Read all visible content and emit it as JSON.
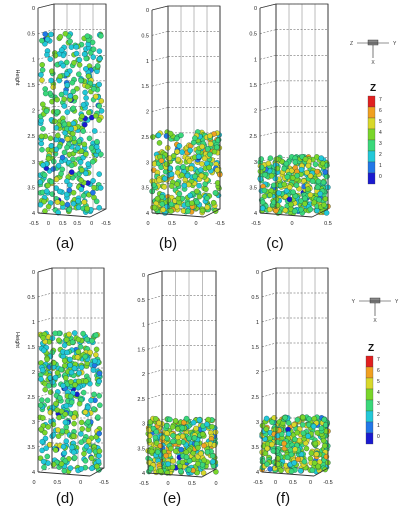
{
  "panels": [
    {
      "id": "a",
      "label": "(a)",
      "ylabel": "Height",
      "yticks": [
        "0",
        "0.5",
        "1",
        "1.5",
        "2",
        "2.5",
        "3",
        "3.5",
        "4"
      ],
      "xticks": [
        "-0.5",
        "0",
        "0.5",
        "0.5",
        "0",
        "-0.5"
      ],
      "fill_top": 0.5,
      "fill_bottom": 4.0,
      "fill_shape": "column"
    },
    {
      "id": "b",
      "label": "(b)",
      "ylabel": "",
      "yticks": [
        "0",
        "0.5",
        "1",
        "1.5",
        "2",
        "2.5",
        "3",
        "3.5",
        "4"
      ],
      "xticks": [
        "0",
        "0.5",
        "0",
        "-0.5"
      ],
      "fill_top": 2.4,
      "fill_bottom": 4.0,
      "fill_shape": "bed"
    },
    {
      "id": "c",
      "label": "(c)",
      "ylabel": "",
      "yticks": [
        "0",
        "0.5",
        "1",
        "1.5",
        "2",
        "2.5",
        "3",
        "3.5",
        "4"
      ],
      "xticks": [
        "-0.5",
        "0",
        "0.5"
      ],
      "fill_top": 2.9,
      "fill_bottom": 4.0,
      "fill_shape": "bed"
    },
    {
      "id": "d",
      "label": "(d)",
      "ylabel": "Height",
      "yticks": [
        "0",
        "0.5",
        "1",
        "1.5",
        "2",
        "2.5",
        "3",
        "3.5",
        "4"
      ],
      "xticks": [
        "0",
        "0.5",
        "0",
        "-0.5"
      ],
      "fill_top": 1.2,
      "fill_bottom": 4.0,
      "fill_shape": "column"
    },
    {
      "id": "e",
      "label": "(e)",
      "ylabel": "",
      "yticks": [
        "0",
        "0.5",
        "1",
        "1.5",
        "2",
        "2.5",
        "3",
        "3.5",
        "4"
      ],
      "xticks": [
        "-0.5",
        "0",
        "0.5",
        "0"
      ],
      "fill_top": 2.9,
      "fill_bottom": 4.0,
      "fill_shape": "bed"
    },
    {
      "id": "f",
      "label": "(f)",
      "ylabel": "",
      "yticks": [
        "0",
        "0.5",
        "1",
        "1.5",
        "2",
        "2.5",
        "3",
        "3.5",
        "4"
      ],
      "xticks": [
        "-0.5",
        "0",
        "0.5",
        "0",
        "-0.5"
      ],
      "fill_top": 2.9,
      "fill_bottom": 4.0,
      "fill_shape": "bed"
    }
  ],
  "colorbars": [
    {
      "title": "Z",
      "levels": [
        "7",
        "6",
        "5",
        "4",
        "3",
        "2",
        "1",
        "0"
      ]
    },
    {
      "title": "Z",
      "levels": [
        "7",
        "6",
        "5",
        "4",
        "3",
        "2",
        "1",
        "0"
      ]
    }
  ],
  "orientation_axes": [
    {
      "labels": [
        "Z",
        "Y",
        "X"
      ]
    },
    {
      "labels": [
        "Y",
        "Y",
        "X"
      ]
    }
  ],
  "colors": {
    "cn": [
      "#1a1ad0",
      "#2277e8",
      "#22c8d8",
      "#3ad87a",
      "#7ad62a",
      "#d8d82a",
      "#f0a020",
      "#e02020"
    ],
    "frame": "#333333",
    "grid": "#555555"
  }
}
